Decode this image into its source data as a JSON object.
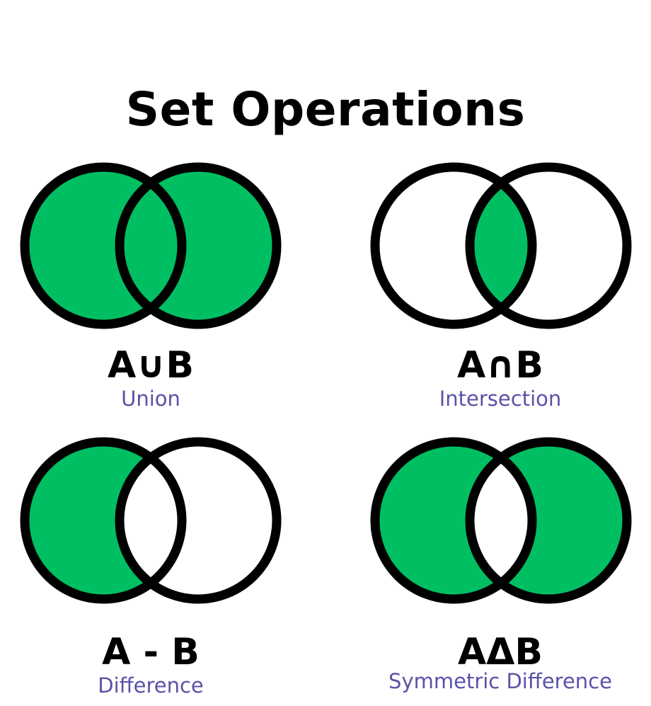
{
  "title": "Set Operations",
  "colors": {
    "fill": "#00bf63",
    "stroke": "#000000",
    "name_text": "#5a52a8"
  },
  "panels": [
    {
      "symbol": "A∪B",
      "name": "Union",
      "shaded": "union"
    },
    {
      "symbol": "A∩B",
      "name": "Intersection",
      "shaded": "intersection"
    },
    {
      "symbol": "A - B",
      "name": "Difference",
      "shaded": "difference"
    },
    {
      "symbol": "AΔB",
      "name": "Symmetric Difference",
      "shaded": "symmetric-difference"
    }
  ]
}
